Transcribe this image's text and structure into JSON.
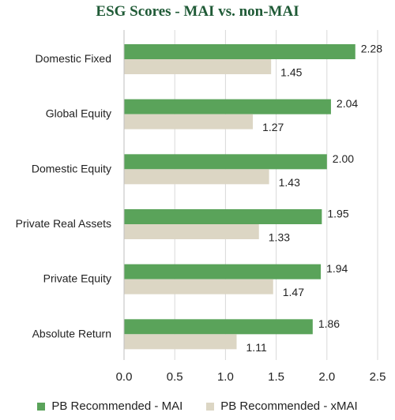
{
  "chart_data": {
    "type": "bar",
    "orientation": "horizontal",
    "title": "ESG Scores - MAI vs. non-MAI",
    "categories": [
      "Domestic Fixed",
      "Global Equity",
      "Domestic Equity",
      "Private Real Assets",
      "Private Equity",
      "Absolute Return"
    ],
    "series": [
      {
        "name": "PB Recommended - MAI",
        "values": [
          2.28,
          2.04,
          2.0,
          1.95,
          1.94,
          1.86
        ],
        "color": "#5aa35a"
      },
      {
        "name": "PB Recommended - xMAI",
        "values": [
          1.45,
          1.27,
          1.43,
          1.33,
          1.47,
          1.11
        ],
        "color": "#dcd6c4"
      }
    ],
    "value_labels": [
      [
        "2.28",
        "2.04",
        "2.00",
        "1.95",
        "1.94",
        "1.86"
      ],
      [
        "1.45",
        "1.27",
        "1.43",
        "1.33",
        "1.47",
        "1.11"
      ]
    ],
    "xlim": [
      0,
      2.5
    ],
    "xticks": [
      "0.0",
      "0.5",
      "1.0",
      "1.5",
      "2.0",
      "2.5"
    ],
    "grid": "vertical",
    "legend_position": "bottom"
  }
}
